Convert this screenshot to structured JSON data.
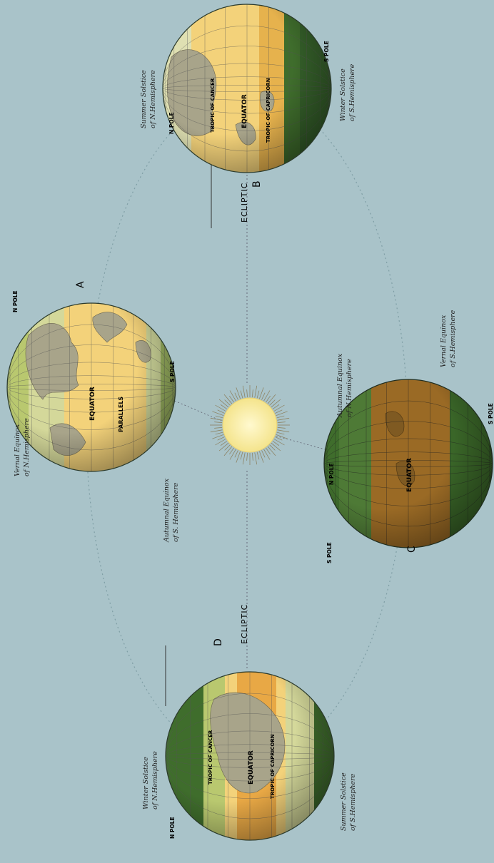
{
  "labels": {
    "A": "A",
    "B": "B",
    "C": "C",
    "D": "D",
    "ecliptic": "ECLIPTIC",
    "n_pole": "N POLE",
    "s_pole": "S POLE",
    "equator": "EQUATOR",
    "tropic_cancer": "TROPIC OF CANCER",
    "tropic_capricorn": "TROPIC OF CAPRICORN",
    "parallels": "PARALLELS",
    "vernal_n": [
      "Vernal Equinox",
      "of N.Hemisphere"
    ],
    "autumnal_s": [
      "Autumnal Equinox",
      "of S. Hemisphere"
    ],
    "summer_n": [
      "Summer Solstice",
      "of N.Hemisphere"
    ],
    "winter_s": [
      "Winter Solstice",
      "of S.Hemisphere"
    ],
    "autumnal_n": [
      "Autumnal Equinox",
      "of N.Hemisphere"
    ],
    "vernal_s": [
      "Vernal Equinox",
      "of S.Hemisphere"
    ],
    "winter_n": [
      "Winter Solstice",
      "of N.Hemisphere"
    ],
    "summer_s": [
      "Summer Solstice",
      "of S.Hemisphere"
    ]
  },
  "colors": {
    "sky": "#a9c3c9",
    "sun": "#f6eba0",
    "lit_zone": "#f3d27a",
    "temperate": "#e9e4b6",
    "green_dark": "#3f6d2c",
    "green_light": "#b9c86f",
    "brown": "#9a6a25",
    "orbit": "#7f9ea5"
  }
}
